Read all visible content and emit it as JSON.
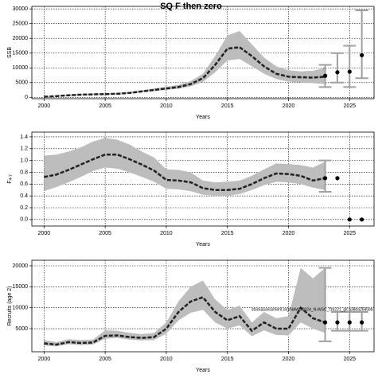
{
  "chart_data": [
    {
      "type": "line",
      "title": "SQ F then zero",
      "ylabel": "SSB",
      "xlabel": "Years",
      "x": [
        2000,
        2001,
        2002,
        2003,
        2004,
        2005,
        2006,
        2007,
        2008,
        2009,
        2010,
        2011,
        2012,
        2013,
        2014,
        2015,
        2016,
        2017,
        2018,
        2019,
        2020,
        2021,
        2022,
        2023
      ],
      "values": [
        200,
        400,
        700,
        900,
        1000,
        1100,
        1200,
        1500,
        2000,
        2500,
        3000,
        3500,
        4500,
        6500,
        11000,
        16500,
        17000,
        14000,
        10500,
        8000,
        7000,
        6800,
        6700,
        7000
      ],
      "lower": [
        100,
        300,
        500,
        700,
        800,
        900,
        1000,
        1300,
        1700,
        2100,
        2500,
        2900,
        3700,
        5200,
        8500,
        12500,
        13000,
        10500,
        8000,
        6200,
        5300,
        5000,
        4800,
        4500
      ],
      "upper": [
        400,
        600,
        900,
        1100,
        1200,
        1300,
        1500,
        1800,
        2400,
        3000,
        3600,
        4200,
        5500,
        8000,
        14000,
        21000,
        22500,
        18000,
        13500,
        10500,
        9200,
        8800,
        9000,
        10000
      ],
      "forecast": {
        "x": [
          2023,
          2024,
          2025,
          2026
        ],
        "values": [
          7300,
          8500,
          8700,
          14300
        ],
        "lower": [
          3500,
          5000,
          3500,
          6500
        ],
        "upper": [
          11000,
          15000,
          17500,
          29500
        ]
      },
      "xlim": [
        1999,
        2027
      ],
      "xticks": [
        2000,
        2005,
        2010,
        2015,
        2020,
        2025
      ],
      "ylim": [
        -460,
        30860
      ],
      "yticks": [
        0,
        5000,
        10000,
        15000,
        20000,
        25000,
        30000
      ],
      "grid": true,
      "color": "#222222",
      "band_color": "#bdbdbd",
      "bar_color": "#a0a0a0"
    },
    {
      "type": "line",
      "ylabel": "F",
      "ylabel_sub": "4-7",
      "xlabel": "Years",
      "x": [
        2000,
        2001,
        2002,
        2003,
        2004,
        2005,
        2006,
        2007,
        2008,
        2009,
        2010,
        2011,
        2012,
        2013,
        2014,
        2015,
        2016,
        2017,
        2018,
        2019,
        2020,
        2021,
        2022,
        2023
      ],
      "values": [
        0.72,
        0.76,
        0.84,
        0.93,
        1.02,
        1.1,
        1.1,
        1.02,
        0.93,
        0.83,
        0.67,
        0.66,
        0.63,
        0.53,
        0.5,
        0.5,
        0.52,
        0.6,
        0.7,
        0.78,
        0.77,
        0.74,
        0.66,
        0.7
      ],
      "lower": [
        0.48,
        0.55,
        0.63,
        0.72,
        0.82,
        0.88,
        0.86,
        0.8,
        0.72,
        0.64,
        0.52,
        0.51,
        0.48,
        0.42,
        0.4,
        0.4,
        0.43,
        0.5,
        0.58,
        0.64,
        0.63,
        0.6,
        0.54,
        0.5
      ],
      "upper": [
        1.08,
        1.1,
        1.15,
        1.22,
        1.32,
        1.38,
        1.35,
        1.27,
        1.15,
        1.05,
        0.85,
        0.84,
        0.8,
        0.66,
        0.63,
        0.64,
        0.66,
        0.74,
        0.85,
        0.95,
        0.94,
        0.92,
        0.88,
        0.98
      ],
      "forecast": {
        "x": [
          2023,
          2024,
          2025,
          2026
        ],
        "values": [
          0.7,
          0.7,
          0,
          0
        ],
        "lower": [
          0.47,
          null,
          null,
          null
        ],
        "upper": [
          1.0,
          null,
          null,
          null
        ]
      },
      "xlim": [
        1999,
        2027
      ],
      "xticks": [
        2000,
        2005,
        2010,
        2015,
        2020,
        2025
      ],
      "ylim": [
        -0.11,
        1.48
      ],
      "yticks": [
        {
          "value": 0,
          "label": "0.0"
        },
        0.2,
        0.4,
        0.6,
        0.8,
        {
          "value": 1,
          "label": "1.0"
        },
        1.2,
        1.4
      ],
      "grid": true,
      "color": "#222222",
      "band_color": "#bdbdbd",
      "bar_color": "#a0a0a0"
    },
    {
      "type": "line",
      "ylabel": "Recruits (age 2)",
      "xlabel": "Years",
      "annotation": "stockassessment.org/NAWG2024_N-WSC_f16221_git:a38da2640eb",
      "x": [
        2000,
        2001,
        2002,
        2003,
        2004,
        2005,
        2006,
        2007,
        2008,
        2009,
        2010,
        2011,
        2012,
        2013,
        2014,
        2015,
        2016,
        2017,
        2018,
        2019,
        2020,
        2021,
        2022,
        2023
      ],
      "values": [
        1500,
        1200,
        1800,
        1600,
        1700,
        3300,
        3400,
        3000,
        2800,
        3000,
        5000,
        9000,
        11500,
        12500,
        9000,
        7000,
        8000,
        4500,
        6500,
        5000,
        5000,
        10000,
        7500,
        6500
      ],
      "lower": [
        1000,
        800,
        1300,
        1100,
        1200,
        2600,
        2800,
        2400,
        2200,
        2300,
        3800,
        7000,
        8800,
        9500,
        6500,
        5000,
        5800,
        3200,
        4600,
        3500,
        3400,
        6500,
        5000,
        4000
      ],
      "upper": [
        2300,
        1800,
        2500,
        2300,
        2400,
        4600,
        4500,
        4000,
        3700,
        4000,
        6500,
        11500,
        15000,
        16500,
        12000,
        9500,
        10500,
        6500,
        9000,
        7500,
        8000,
        19500,
        17000,
        19500
      ],
      "forecast": {
        "x": [
          2023,
          2024,
          2025,
          2026
        ],
        "values": [
          6500,
          6500,
          6500,
          6500
        ],
        "lower": [
          2000,
          4500,
          4500,
          4500
        ],
        "upper": [
          19500,
          9000,
          9000,
          9000
        ]
      },
      "xlim": [
        1999,
        2027
      ],
      "xticks": [
        2000,
        2005,
        2010,
        2015,
        2020,
        2025
      ],
      "ylim": [
        -500,
        21330
      ],
      "yticks": [
        5000,
        10000,
        15000,
        20000
      ],
      "grid": true,
      "color": "#222222",
      "band_color": "#bdbdbd",
      "bar_color": "#a0a0a0"
    }
  ]
}
